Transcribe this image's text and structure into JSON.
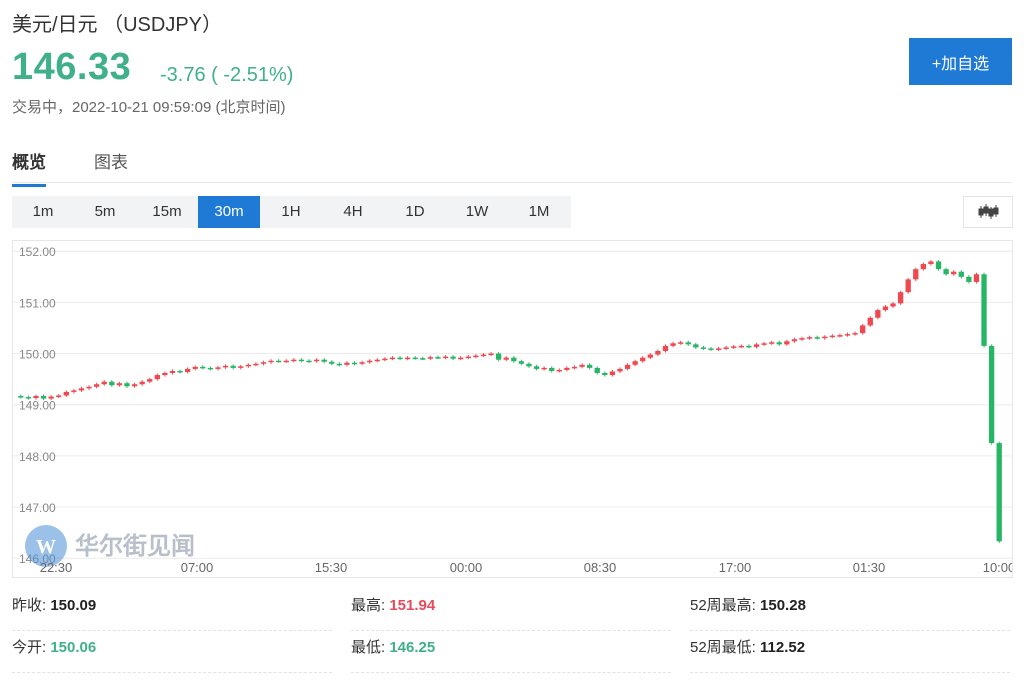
{
  "header": {
    "title": "美元/日元 （USDJPY）",
    "price": "146.33",
    "change": "-3.76 ( -2.51%)",
    "status": "交易中，2022-10-21 09:59:09 (北京时间)",
    "add_button": "+加自选"
  },
  "tabs": [
    "概览",
    "图表"
  ],
  "periods": [
    "1m",
    "5m",
    "15m",
    "30m",
    "1H",
    "4H",
    "1D",
    "1W",
    "1M"
  ],
  "active_period": "30m",
  "watermark": "华尔街见闻",
  "colors": {
    "up": "#f0484f",
    "down": "#27b566",
    "accent": "#1f7ad6"
  },
  "stats": {
    "prev_close_label": "昨收:",
    "prev_close": "150.09",
    "open_label": "今开:",
    "open": "150.06",
    "high_label": "最高:",
    "high": "151.94",
    "low_label": "最低:",
    "low": "146.25",
    "high52_label": "52周最高:",
    "high52": "150.28",
    "low52_label": "52周最低:",
    "low52": "112.52"
  },
  "chart_data": {
    "type": "candlestick",
    "y_ticks": [
      "152.00",
      "151.00",
      "150.00",
      "149.00",
      "148.00",
      "147.00",
      "146.00"
    ],
    "x_ticks": [
      "22:30",
      "07:00",
      "15:30",
      "00:00",
      "08:30",
      "17:00",
      "01:30",
      "10:00"
    ],
    "ylim": [
      145.75,
      152.2
    ],
    "closes": [
      149.15,
      149.13,
      149.17,
      149.12,
      149.16,
      149.18,
      149.25,
      149.28,
      149.32,
      149.35,
      149.4,
      149.45,
      149.38,
      149.42,
      149.36,
      149.4,
      149.45,
      149.5,
      149.58,
      149.62,
      149.66,
      149.64,
      149.7,
      149.74,
      149.72,
      149.7,
      149.73,
      149.76,
      149.72,
      149.75,
      149.78,
      149.8,
      149.83,
      149.86,
      149.85,
      149.86,
      149.88,
      149.86,
      149.85,
      149.88,
      149.84,
      149.8,
      149.78,
      149.82,
      149.8,
      149.83,
      149.86,
      149.88,
      149.9,
      149.92,
      149.9,
      149.92,
      149.91,
      149.9,
      149.93,
      149.92,
      149.94,
      149.9,
      149.92,
      149.94,
      149.96,
      149.98,
      150.0,
      149.88,
      149.92,
      149.85,
      149.8,
      149.75,
      149.7,
      149.72,
      149.66,
      149.68,
      149.72,
      149.74,
      149.78,
      149.72,
      149.62,
      149.58,
      149.65,
      149.7,
      149.78,
      149.85,
      149.92,
      149.98,
      150.05,
      150.15,
      150.2,
      150.22,
      150.18,
      150.12,
      150.1,
      150.08,
      150.1,
      150.12,
      150.14,
      150.15,
      150.13,
      150.18,
      150.2,
      150.22,
      150.18,
      150.24,
      150.28,
      150.3,
      150.32,
      150.3,
      150.33,
      150.35,
      150.36,
      150.38,
      150.4,
      150.55,
      150.7,
      150.85,
      150.92,
      150.98,
      151.2,
      151.45,
      151.65,
      151.75,
      151.8,
      151.65,
      151.55,
      151.6,
      151.5,
      151.4,
      151.55,
      150.15,
      148.25,
      146.33
    ],
    "last_update_series": "USDJPY 30m"
  }
}
